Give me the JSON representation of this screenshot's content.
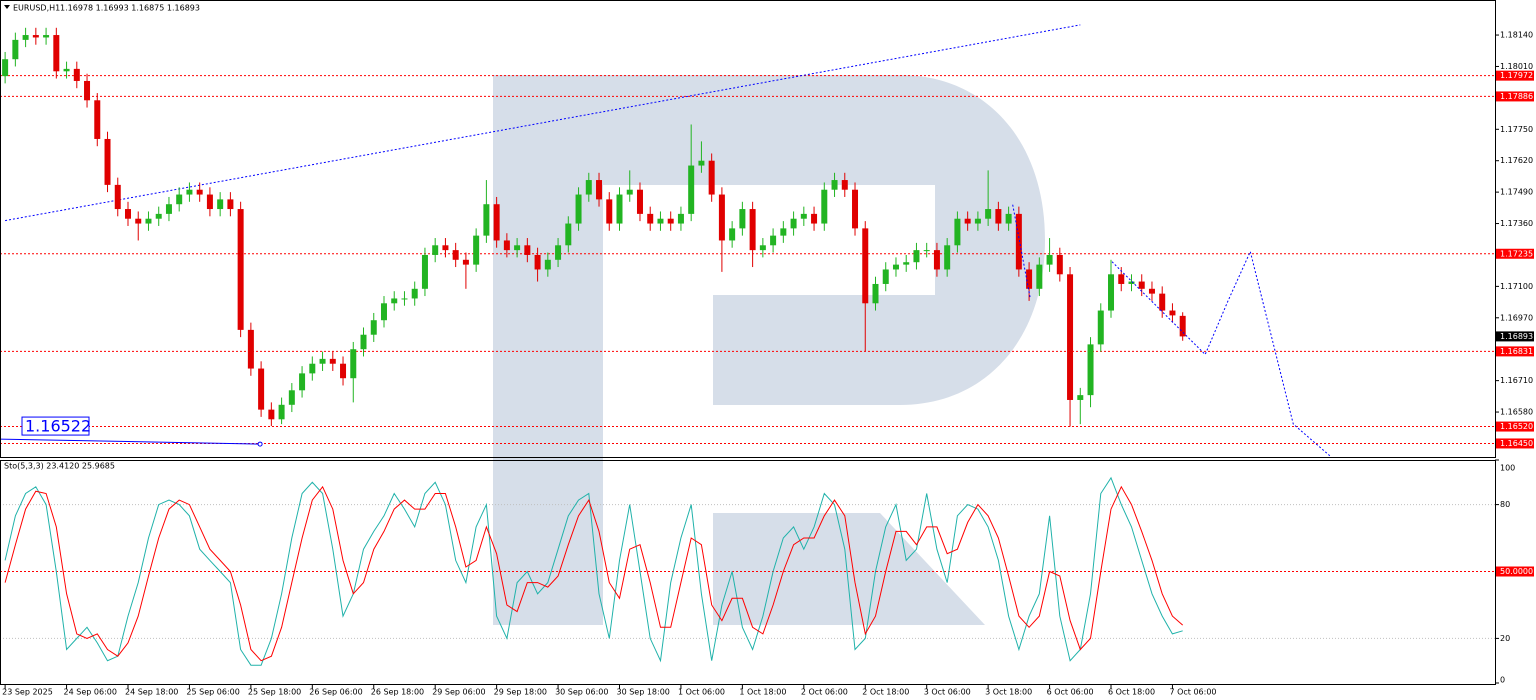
{
  "chart_data": [
    {
      "type": "candlestick",
      "title": "EURUSD,H1",
      "ohlc_text": "1.16978 1.16993 1.16875 1.16893",
      "up_color": "#22b422",
      "down_color": "#e00000",
      "x": [
        0,
        1,
        2,
        3,
        4,
        5,
        6,
        7,
        8,
        9,
        10,
        11,
        12,
        13,
        14,
        15,
        16,
        17,
        18,
        19,
        20,
        21,
        22,
        23,
        24,
        25,
        26,
        27,
        28,
        29,
        30,
        31,
        32,
        33,
        34,
        35,
        36,
        37,
        38,
        39,
        40,
        41,
        42,
        43,
        44,
        45,
        46,
        47,
        48,
        49,
        50,
        51,
        52,
        53,
        54,
        55,
        56,
        57,
        58,
        59,
        60,
        61,
        62,
        63,
        64,
        65,
        66,
        67,
        68,
        69,
        70,
        71,
        72,
        73,
        74,
        75,
        76,
        77,
        78,
        79,
        80,
        81,
        82,
        83,
        84,
        85,
        86,
        87,
        88,
        89,
        90,
        91,
        92,
        93,
        94,
        95,
        96,
        97,
        98,
        99,
        100,
        101,
        102,
        103,
        104,
        105,
        106,
        107,
        108,
        109,
        110,
        111,
        112,
        113,
        114,
        115
      ],
      "open": [
        1.1797,
        1.1804,
        1.1812,
        1.1814,
        1.1813,
        1.1814,
        1.1799,
        1.18,
        1.1795,
        1.1787,
        1.1771,
        1.1752,
        1.1742,
        1.1738,
        1.1736,
        1.1738,
        1.174,
        1.1744,
        1.1748,
        1.175,
        1.1748,
        1.1742,
        1.1746,
        1.1742,
        1.1692,
        1.1676,
        1.1659,
        1.1655,
        1.1661,
        1.1667,
        1.1674,
        1.1678,
        1.168,
        1.1678,
        1.1672,
        1.1684,
        1.169,
        1.1696,
        1.1703,
        1.1705,
        1.1705,
        1.1709,
        1.1723,
        1.1727,
        1.1725,
        1.1721,
        1.1719,
        1.1731,
        1.1744,
        1.1729,
        1.1725,
        1.1727,
        1.1723,
        1.1717,
        1.1721,
        1.1727,
        1.1736,
        1.1748,
        1.1754,
        1.1746,
        1.1736,
        1.1748,
        1.175,
        1.174,
        1.1736,
        1.1738,
        1.1736,
        1.174,
        1.176,
        1.1762,
        1.1748,
        1.1729,
        1.1734,
        1.1742,
        1.1725,
        1.1727,
        1.1731,
        1.1734,
        1.1738,
        1.174,
        1.1736,
        1.175,
        1.1754,
        1.175,
        1.1734,
        1.1703,
        1.1711,
        1.1717,
        1.1719,
        1.172,
        1.1725,
        1.1725,
        1.1717,
        1.1727,
        1.1738,
        1.1736,
        1.1738,
        1.1742,
        1.1736,
        1.174,
        1.1717,
        1.1709,
        1.1719,
        1.1723,
        1.1715,
        1.1663,
        1.1665,
        1.1686,
        1.17,
        1.1715,
        1.1711,
        1.1712,
        1.1709,
        1.1707,
        1.17,
        1.16978
      ],
      "high": [
        1.1807,
        1.1815,
        1.1817,
        1.1817,
        1.1817,
        1.1817,
        1.1803,
        1.1803,
        1.1798,
        1.179,
        1.1774,
        1.1755,
        1.1745,
        1.1741,
        1.1741,
        1.1743,
        1.1747,
        1.1751,
        1.1753,
        1.1753,
        1.1751,
        1.1749,
        1.1749,
        1.1745,
        1.1695,
        1.1679,
        1.1662,
        1.1664,
        1.167,
        1.1677,
        1.1681,
        1.1683,
        1.1683,
        1.1681,
        1.1687,
        1.1693,
        1.1699,
        1.1706,
        1.1708,
        1.1708,
        1.1712,
        1.1726,
        1.173,
        1.173,
        1.1728,
        1.1724,
        1.1734,
        1.1754,
        1.1747,
        1.1732,
        1.173,
        1.173,
        1.1726,
        1.1724,
        1.173,
        1.1739,
        1.1751,
        1.1757,
        1.1757,
        1.1749,
        1.1751,
        1.1758,
        1.1753,
        1.1743,
        1.1741,
        1.1741,
        1.1743,
        1.1777,
        1.177,
        1.1765,
        1.1751,
        1.1737,
        1.1745,
        1.1745,
        1.173,
        1.1734,
        1.1737,
        1.1741,
        1.1743,
        1.1743,
        1.1753,
        1.1757,
        1.1757,
        1.1753,
        1.1737,
        1.1714,
        1.172,
        1.1722,
        1.1723,
        1.1728,
        1.1728,
        1.1728,
        1.173,
        1.1741,
        1.1741,
        1.1741,
        1.1758,
        1.1745,
        1.1743,
        1.1743,
        1.172,
        1.1722,
        1.173,
        1.1726,
        1.1718,
        1.1668,
        1.1689,
        1.1703,
        1.1721,
        1.1718,
        1.1715,
        1.1715,
        1.1712,
        1.171,
        1.1703,
        1.16993
      ],
      "low": [
        1.1794,
        1.1801,
        1.1809,
        1.181,
        1.181,
        1.1796,
        1.1796,
        1.1792,
        1.1784,
        1.1768,
        1.1749,
        1.1739,
        1.1735,
        1.1729,
        1.1733,
        1.1735,
        1.1737,
        1.1741,
        1.1745,
        1.1745,
        1.1739,
        1.1739,
        1.1739,
        1.1689,
        1.1673,
        1.1656,
        1.16522,
        1.1653,
        1.1658,
        1.1664,
        1.1671,
        1.1675,
        1.1675,
        1.1669,
        1.1662,
        1.1681,
        1.1687,
        1.1693,
        1.17,
        1.1702,
        1.1702,
        1.1706,
        1.172,
        1.1722,
        1.1718,
        1.1709,
        1.1716,
        1.1728,
        1.1726,
        1.1722,
        1.1722,
        1.172,
        1.1712,
        1.1714,
        1.1718,
        1.1724,
        1.1733,
        1.1745,
        1.1743,
        1.1733,
        1.1733,
        1.1745,
        1.1737,
        1.1733,
        1.1733,
        1.1733,
        1.1733,
        1.1737,
        1.1757,
        1.1745,
        1.1716,
        1.1726,
        1.1731,
        1.1718,
        1.1722,
        1.1724,
        1.1728,
        1.1731,
        1.1735,
        1.1733,
        1.1733,
        1.1747,
        1.1747,
        1.1731,
        1.16831,
        1.17,
        1.1708,
        1.1714,
        1.1716,
        1.1717,
        1.1722,
        1.1714,
        1.1714,
        1.1724,
        1.1733,
        1.1733,
        1.1735,
        1.1733,
        1.1733,
        1.1714,
        1.1704,
        1.1706,
        1.1716,
        1.1712,
        1.1652,
        1.1653,
        1.166,
        1.1683,
        1.1697,
        1.1708,
        1.1708,
        1.1706,
        1.1704,
        1.1697,
        1.1695,
        1.16875
      ],
      "close": [
        1.1804,
        1.1812,
        1.1814,
        1.1813,
        1.1814,
        1.1799,
        1.18,
        1.1795,
        1.1787,
        1.1771,
        1.1752,
        1.1742,
        1.1738,
        1.1736,
        1.1738,
        1.174,
        1.1744,
        1.1748,
        1.175,
        1.1748,
        1.1742,
        1.1746,
        1.1742,
        1.1692,
        1.1676,
        1.1659,
        1.1655,
        1.1661,
        1.1667,
        1.1674,
        1.1678,
        1.168,
        1.1678,
        1.1672,
        1.1684,
        1.169,
        1.1696,
        1.1703,
        1.1705,
        1.1705,
        1.1709,
        1.1723,
        1.1727,
        1.1725,
        1.1721,
        1.1719,
        1.1731,
        1.1744,
        1.1729,
        1.1725,
        1.1727,
        1.1723,
        1.1717,
        1.1721,
        1.1727,
        1.1736,
        1.1748,
        1.1754,
        1.1746,
        1.1736,
        1.1748,
        1.175,
        1.174,
        1.1736,
        1.1738,
        1.1736,
        1.174,
        1.176,
        1.1762,
        1.1748,
        1.1729,
        1.1734,
        1.1742,
        1.1725,
        1.1727,
        1.1731,
        1.1734,
        1.1738,
        1.174,
        1.1736,
        1.175,
        1.1754,
        1.175,
        1.1734,
        1.1703,
        1.1711,
        1.1717,
        1.1719,
        1.172,
        1.1725,
        1.1725,
        1.1717,
        1.1727,
        1.1738,
        1.1736,
        1.1738,
        1.1742,
        1.1736,
        1.174,
        1.1717,
        1.1709,
        1.1719,
        1.1723,
        1.1715,
        1.1663,
        1.1665,
        1.1686,
        1.17,
        1.1715,
        1.1711,
        1.1712,
        1.1709,
        1.1707,
        1.17,
        1.1698,
        1.16893
      ],
      "xlim": [
        -0.5,
        145.5
      ],
      "xticks": [
        {
          "value": 0,
          "label": "23 Sep 2025"
        },
        {
          "value": 6,
          "label": "24 Sep 06:00"
        },
        {
          "value": 12,
          "label": "24 Sep 18:00"
        },
        {
          "value": 18,
          "label": "25 Sep 06:00"
        },
        {
          "value": 24,
          "label": "25 Sep 18:00"
        },
        {
          "value": 30,
          "label": "26 Sep 06:00"
        },
        {
          "value": 36,
          "label": "26 Sep 18:00"
        },
        {
          "value": 42,
          "label": "29 Sep 06:00"
        },
        {
          "value": 48,
          "label": "29 Sep 18:00"
        },
        {
          "value": 54,
          "label": "30 Sep 06:00"
        },
        {
          "value": 60,
          "label": "30 Sep 18:00"
        },
        {
          "value": 66,
          "label": "1 Oct 06:00"
        },
        {
          "value": 72,
          "label": "1 Oct 18:00"
        },
        {
          "value": 78,
          "label": "2 Oct 06:00"
        },
        {
          "value": 84,
          "label": "2 Oct 18:00"
        },
        {
          "value": 90,
          "label": "3 Oct 06:00"
        },
        {
          "value": 96,
          "label": "3 Oct 18:00"
        },
        {
          "value": 102,
          "label": "6 Oct 06:00"
        },
        {
          "value": 108,
          "label": "6 Oct 18:00"
        },
        {
          "value": 114,
          "label": "7 Oct 06:00"
        }
      ],
      "ylim": [
        1.16394,
        1.18285
      ],
      "yticks": [
        {
          "value": 1.1814,
          "label": "1.18140"
        },
        {
          "value": 1.1801,
          "label": "1.18010"
        },
        {
          "value": 1.1775,
          "label": "1.17750"
        },
        {
          "value": 1.1762,
          "label": "1.17620"
        },
        {
          "value": 1.1749,
          "label": "1.17490"
        },
        {
          "value": 1.1736,
          "label": "1.17360"
        },
        {
          "value": 1.171,
          "label": "1.17100"
        },
        {
          "value": 1.1697,
          "label": "1.16970"
        },
        {
          "value": 1.1671,
          "label": "1.16710"
        },
        {
          "value": 1.1658,
          "label": "1.16580"
        }
      ],
      "level_color": "#ff0000",
      "levels": [
        {
          "value": 1.17972,
          "label": "1.17972"
        },
        {
          "value": 1.17886,
          "label": "1.17886"
        },
        {
          "value": 1.17235,
          "label": "1.17235"
        },
        {
          "value": 1.16831,
          "label": "1.16831"
        },
        {
          "value": 1.1652,
          "label": "1.16520"
        },
        {
          "value": 1.1645,
          "label": "1.16450"
        }
      ],
      "current_price": {
        "value": 1.16893,
        "label": "1.16893"
      },
      "line_color": "#0000ff",
      "trendline": {
        "x": [
          0,
          105
        ],
        "y": [
          1.17372,
          1.18182
        ]
      },
      "forecast": {
        "x": [
          98.4,
          100.1,
          null,
          108.1,
          117.2,
          119.4,
          121.6,
          125.8,
          129.4
        ],
        "y": [
          1.17438,
          1.17054,
          null,
          1.17202,
          1.16818,
          1.17037,
          1.17244,
          1.1653,
          1.16398
        ]
      },
      "annotation": {
        "value": 1.16522,
        "label": "1.16522",
        "x": 24.9
      }
    },
    {
      "type": "line",
      "title": "Sto(5,3,3) 23.4120 25.9685",
      "ylim": [
        0,
        100
      ],
      "yticks": [
        100,
        80,
        {
          "value": 50,
          "label": "50.0000"
        },
        20,
        0
      ],
      "highlight_color": "#ff0000",
      "highlight_tick": 2,
      "series": [
        {
          "color": "#20b2aa",
          "values": [
            55,
            75,
            85,
            88,
            80,
            50,
            15,
            20,
            25,
            18,
            10,
            12,
            30,
            45,
            65,
            80,
            82,
            80,
            75,
            60,
            55,
            50,
            45,
            15,
            8,
            8,
            20,
            40,
            65,
            85,
            90,
            85,
            60,
            30,
            40,
            60,
            68,
            75,
            85,
            78,
            70,
            85,
            90,
            80,
            55,
            45,
            70,
            80,
            30,
            20,
            45,
            50,
            40,
            45,
            60,
            75,
            82,
            85,
            40,
            20,
            55,
            80,
            50,
            20,
            10,
            45,
            65,
            80,
            40,
            10,
            35,
            50,
            25,
            15,
            30,
            50,
            65,
            70,
            60,
            70,
            85,
            80,
            60,
            15,
            20,
            50,
            70,
            80,
            55,
            60,
            85,
            60,
            45,
            75,
            80,
            78,
            70,
            55,
            30,
            15,
            30,
            40,
            75,
            30,
            10,
            15,
            40,
            85,
            92,
            80,
            70,
            55,
            40,
            30,
            22,
            23.412
          ]
        },
        {
          "color": "#ff0000",
          "values": [
            45,
            62,
            78,
            86,
            85,
            70,
            40,
            22,
            20,
            22,
            15,
            12,
            18,
            30,
            48,
            65,
            78,
            82,
            80,
            70,
            60,
            55,
            50,
            35,
            15,
            10,
            12,
            25,
            45,
            65,
            82,
            88,
            78,
            55,
            40,
            45,
            60,
            68,
            78,
            82,
            78,
            78,
            85,
            85,
            70,
            52,
            55,
            70,
            58,
            35,
            32,
            45,
            45,
            43,
            48,
            62,
            75,
            82,
            68,
            45,
            38,
            60,
            62,
            45,
            25,
            25,
            45,
            65,
            62,
            35,
            28,
            38,
            38,
            25,
            22,
            35,
            50,
            62,
            65,
            65,
            75,
            82,
            75,
            45,
            22,
            30,
            50,
            68,
            68,
            62,
            70,
            70,
            58,
            60,
            72,
            80,
            75,
            65,
            48,
            30,
            25,
            30,
            50,
            48,
            28,
            15,
            20,
            50,
            78,
            88,
            80,
            68,
            55,
            40,
            30,
            25.9685
          ]
        }
      ]
    }
  ]
}
